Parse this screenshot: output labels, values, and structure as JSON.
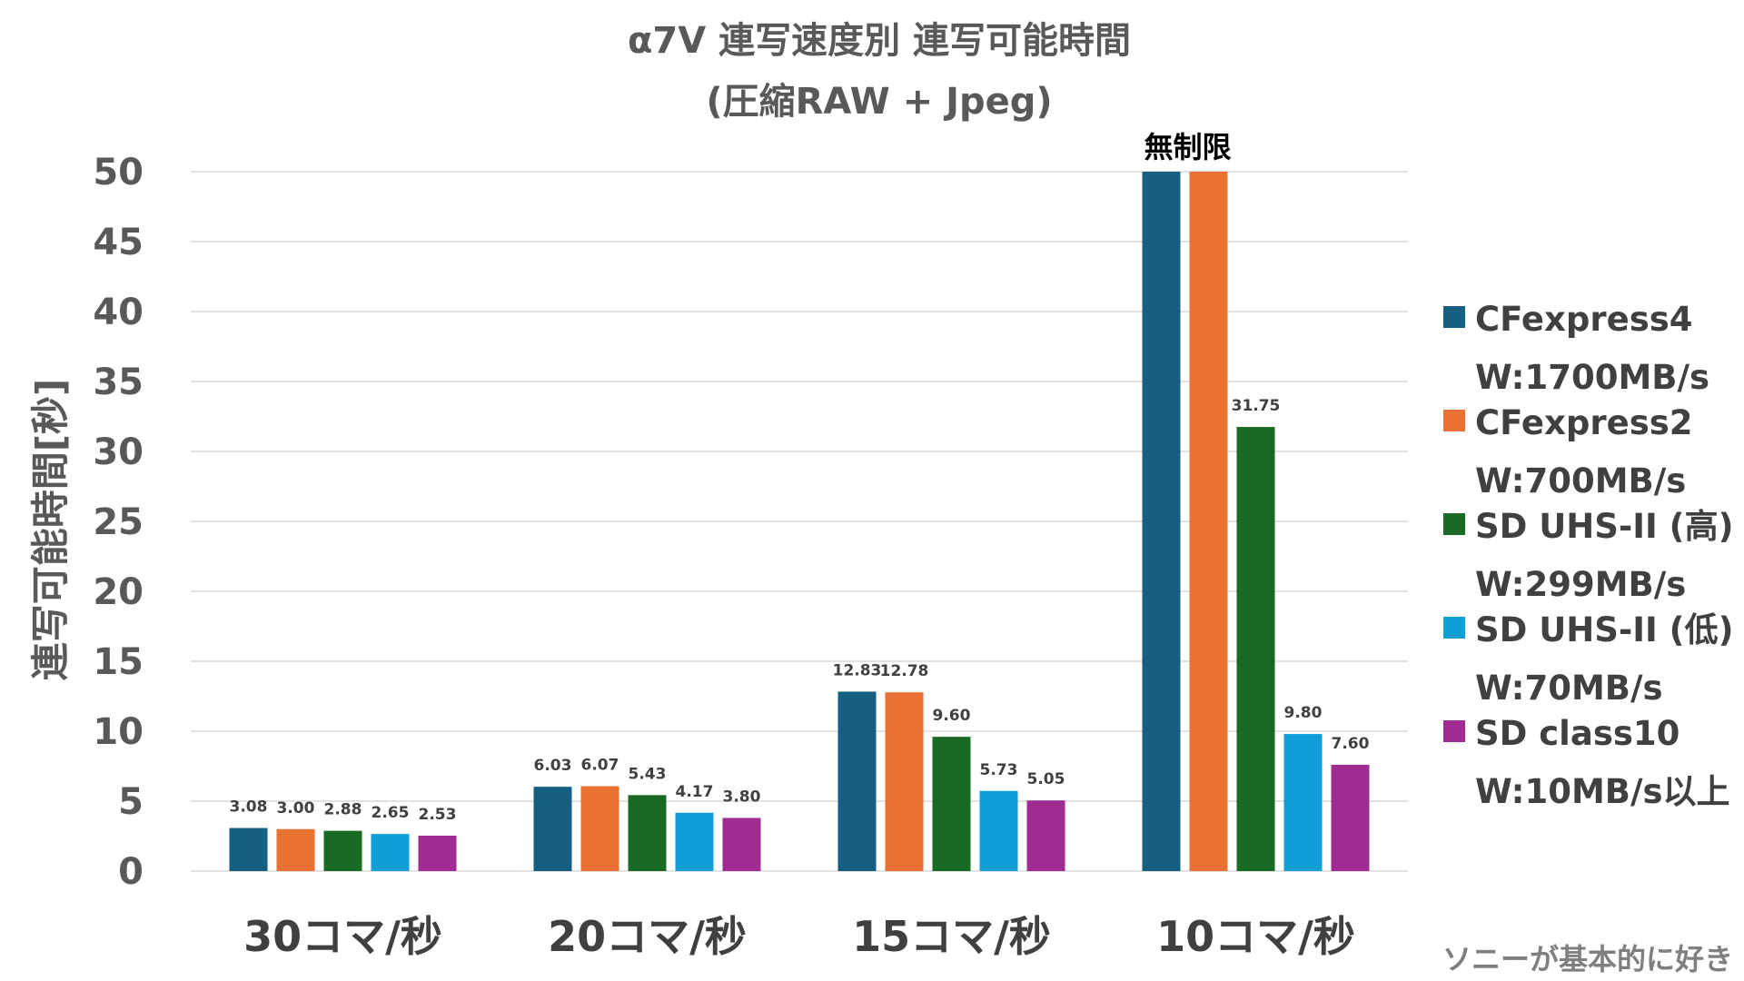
{
  "chart_data": {
    "type": "bar",
    "title": "α7V 連写速度別 連写可能時間",
    "subtitle": "(圧縮RAW + Jpeg)",
    "xlabel": "",
    "ylabel": "連写可能時間[秒]",
    "ylim": [
      0,
      50
    ],
    "yticks": [
      "0",
      "5",
      "10",
      "15",
      "20",
      "25",
      "30",
      "35",
      "40",
      "45",
      "50"
    ],
    "grid": true,
    "legend_position": "right",
    "categories": [
      "30コマ/秒",
      "20コマ/秒",
      "15コマ/秒",
      "10コマ/秒"
    ],
    "series": [
      {
        "name_line1": "CFexpress4",
        "name_line2": "W:1700MB/s",
        "color": "#156082",
        "values": [
          3.08,
          6.03,
          12.83,
          50
        ],
        "labels": [
          "3.08",
          "6.03",
          "12.83",
          ""
        ]
      },
      {
        "name_line1": "CFexpress2",
        "name_line2": "W:700MB/s",
        "color": "#E97132",
        "values": [
          3.0,
          6.07,
          12.78,
          50
        ],
        "labels": [
          "3.00",
          "6.07",
          "12.78",
          ""
        ]
      },
      {
        "name_line1": "SD UHS-II (高)",
        "name_line2": "W:299MB/s",
        "color": "#196B24",
        "values": [
          2.88,
          5.43,
          9.6,
          31.75
        ],
        "labels": [
          "2.88",
          "5.43",
          "9.60",
          "31.75"
        ]
      },
      {
        "name_line1": "SD UHS-II (低)",
        "name_line2": "W:70MB/s",
        "color": "#0F9ED5",
        "values": [
          2.65,
          4.17,
          5.73,
          9.8
        ],
        "labels": [
          "2.65",
          "4.17",
          "5.73",
          "9.80"
        ]
      },
      {
        "name_line1": "SD class10",
        "name_line2": "W:10MB/s以上",
        "color": "#A02B93",
        "values": [
          2.53,
          3.8,
          5.05,
          7.6
        ],
        "labels": [
          "2.53",
          "3.80",
          "5.05",
          "7.60"
        ]
      }
    ],
    "annotations": [
      {
        "text": "無制限",
        "category_index": 3
      }
    ]
  },
  "credit": "ソニーが基本的に好き"
}
